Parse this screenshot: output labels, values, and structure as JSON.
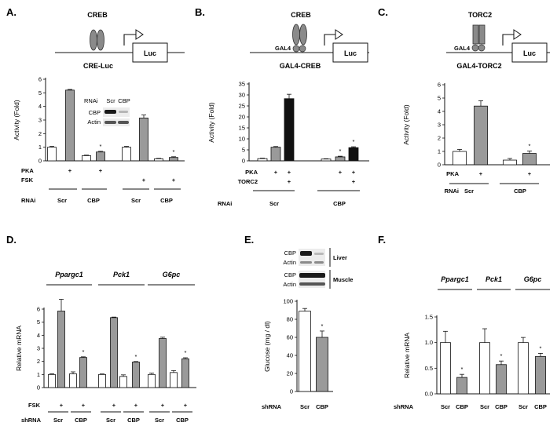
{
  "panel_letters": [
    "A.",
    "B.",
    "C.",
    "D.",
    "E.",
    "F."
  ],
  "schematics": {
    "A": {
      "protein": "CREB",
      "construct": "CRE-Luc",
      "reporter": "Luc"
    },
    "B": {
      "protein": "CREB",
      "domain": "GAL4",
      "construct": "GAL4-CREB",
      "reporter": "Luc"
    },
    "C": {
      "protein": "TORC2",
      "domain": "GAL4",
      "construct": "GAL4-TORC2",
      "reporter": "Luc"
    }
  },
  "blot_A": {
    "header_label": "RNAi",
    "lanes": [
      "Scr",
      "CBP"
    ],
    "rows": [
      "CBP",
      "Actin"
    ]
  },
  "blot_E": [
    {
      "rows": [
        "CBP",
        "Actin"
      ],
      "tissue": "Liver"
    },
    {
      "rows": [
        "CBP",
        "Actin"
      ],
      "tissue": "Muscle"
    }
  ],
  "conditions": {
    "A": {
      "rows": [
        "PKA",
        "FSK"
      ],
      "pka": [
        "",
        "+",
        "",
        "+",
        "",
        "",
        "",
        ""
      ],
      "fsk": [
        "",
        "",
        "",
        "",
        "",
        "+",
        "",
        "+"
      ],
      "rnai_label": "RNAi",
      "groups": [
        "Scr",
        "CBP",
        "Scr",
        "CBP"
      ]
    },
    "B": {
      "rows": [
        "PKA",
        "TORC2"
      ],
      "pka": [
        "",
        "+",
        "+",
        "",
        "+",
        "+"
      ],
      "torc2": [
        "",
        "",
        "+",
        "",
        "",
        "+"
      ],
      "rnai_label": "RNAi",
      "groups": [
        "Scr",
        "CBP"
      ]
    },
    "C": {
      "rows": [
        "PKA"
      ],
      "pka": [
        "",
        "+",
        "",
        "+"
      ],
      "rnai_label": "RNAi",
      "groups": [
        "Scr",
        "CBP"
      ]
    },
    "D": {
      "rows": [
        "FSK"
      ],
      "fsk": [
        "",
        "+",
        "",
        "+"
      ],
      "shrna_label": "shRNA",
      "groups": [
        "Scr",
        "CBP"
      ]
    },
    "E": {
      "shrna_label": "shRNA",
      "groups": [
        "Scr",
        "CBP"
      ]
    },
    "F": {
      "shrna_label": "shRNA",
      "groups": [
        "Scr",
        "CBP"
      ]
    }
  },
  "colors": {
    "white": "#ffffff",
    "grey": "#9a9a9a",
    "black": "#111111"
  },
  "chart_data": [
    {
      "id": "A",
      "type": "bar",
      "ylabel": "Activity (Fold)",
      "ylim": [
        0,
        6
      ],
      "yticks": [
        "0",
        "1",
        "2",
        "3",
        "4",
        "5",
        "6"
      ],
      "values": [
        1.0,
        5.2,
        0.38,
        0.65,
        1.0,
        3.15,
        0.15,
        0.25
      ],
      "errors": [
        0.06,
        0.05,
        0.04,
        0.05,
        0.06,
        0.22,
        0.03,
        0.05
      ],
      "fills": [
        "white",
        "grey",
        "white",
        "grey",
        "white",
        "grey",
        "white",
        "grey"
      ],
      "stars": [
        "",
        "",
        "",
        "*",
        "",
        "",
        "",
        "*"
      ]
    },
    {
      "id": "B",
      "type": "bar",
      "ylabel": "Activity (Fold)",
      "ylim": [
        0,
        35
      ],
      "yticks": [
        "0",
        "5",
        "10",
        "15",
        "20",
        "25",
        "30",
        "35"
      ],
      "values": [
        1.0,
        6.2,
        28.3,
        0.8,
        1.8,
        6.0
      ],
      "errors": [
        0.2,
        0.3,
        2.0,
        0.15,
        0.3,
        0.4
      ],
      "fills": [
        "white",
        "grey",
        "black",
        "white",
        "grey",
        "black"
      ],
      "stars": [
        "",
        "",
        "",
        "",
        "*",
        "*"
      ]
    },
    {
      "id": "C",
      "type": "bar",
      "ylabel": "Activity (Fold)",
      "ylim": [
        0,
        6
      ],
      "yticks": [
        "0",
        "1",
        "2",
        "3",
        "4",
        "5",
        "6"
      ],
      "values": [
        1.0,
        4.4,
        0.35,
        0.85
      ],
      "errors": [
        0.15,
        0.4,
        0.12,
        0.18
      ],
      "fills": [
        "white",
        "grey",
        "white",
        "grey"
      ],
      "stars": [
        "",
        "",
        "",
        "*"
      ]
    },
    {
      "id": "D",
      "type": "bar",
      "ylabel": "Relative mRNA",
      "ylim": [
        0,
        6
      ],
      "yticks": [
        "0",
        "1",
        "2",
        "3",
        "4",
        "5",
        "6"
      ],
      "genes": [
        "Ppargc1",
        "Pck1",
        "G6pc"
      ],
      "values": [
        [
          1.0,
          5.85,
          1.05,
          2.3
        ],
        [
          1.0,
          5.35,
          0.85,
          1.95
        ],
        [
          1.0,
          3.75,
          1.15,
          2.2
        ]
      ],
      "errors": [
        [
          0.05,
          0.9,
          0.15,
          0.05
        ],
        [
          0.04,
          0.04,
          0.12,
          0.04
        ],
        [
          0.1,
          0.1,
          0.15,
          0.08
        ]
      ],
      "fills": [
        "white",
        "grey",
        "white",
        "grey"
      ],
      "stars": [
        "",
        "",
        "",
        "*"
      ]
    },
    {
      "id": "E",
      "type": "bar",
      "ylabel": "Glucose (mg / dl)",
      "ylim": [
        0,
        100
      ],
      "yticks": [
        "0",
        "20",
        "40",
        "60",
        "80",
        "100"
      ],
      "values": [
        89,
        60
      ],
      "errors": [
        3,
        7
      ],
      "fills": [
        "white",
        "grey"
      ],
      "stars": [
        "",
        "*"
      ]
    },
    {
      "id": "F",
      "type": "bar",
      "ylabel": "Relative mRNA",
      "ylim": [
        0,
        1.5
      ],
      "yticks": [
        "0.0",
        "0.5",
        "1.0",
        "1.5"
      ],
      "genes": [
        "Ppargc1",
        "Pck1",
        "G6pc"
      ],
      "values": [
        [
          1.0,
          0.32
        ],
        [
          1.0,
          0.57
        ],
        [
          1.0,
          0.73
        ]
      ],
      "errors": [
        [
          0.22,
          0.06
        ],
        [
          0.27,
          0.07
        ],
        [
          0.1,
          0.06
        ]
      ],
      "fills": [
        "white",
        "grey"
      ],
      "stars": [
        "",
        "*"
      ]
    }
  ]
}
